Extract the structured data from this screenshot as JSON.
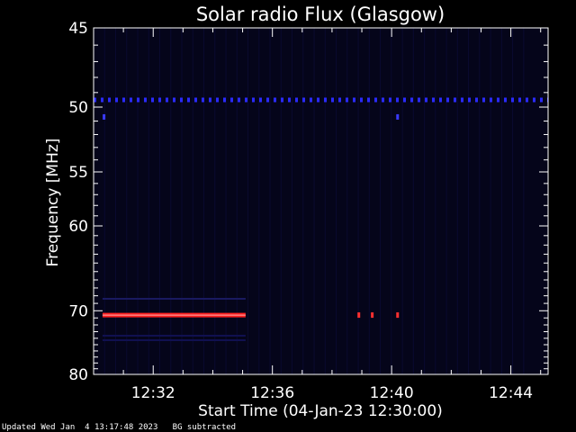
{
  "chart_data": {
    "type": "heatmap",
    "title": "Solar radio Flux (Glasgow)",
    "xlabel": "Start Time (04-Jan-23 12:30:00)",
    "ylabel": "Frequency [MHz]",
    "x_unit": "minutes after 12:30:00",
    "xlim": [
      0,
      15.25
    ],
    "ylim": [
      80,
      45
    ],
    "y_scale": "reciprocal",
    "x_ticks": [
      {
        "value": 2,
        "label": "12:32"
      },
      {
        "value": 6,
        "label": "12:36"
      },
      {
        "value": 10,
        "label": "12:40"
      },
      {
        "value": 14,
        "label": "12:44"
      }
    ],
    "y_ticks": [
      45,
      50,
      55,
      60,
      70,
      80
    ],
    "background_color": "#05051a",
    "features": [
      {
        "name": "interference-band-49.5MHz",
        "freq": 49.5,
        "t_start": 0,
        "t_end": 15.25,
        "color": "#2a2aff",
        "style": "dashed"
      },
      {
        "name": "interference-band-70.5MHz",
        "freq": 70.6,
        "t_start": 0.3,
        "t_end": 5.1,
        "color": "#ff2020",
        "style": "solid"
      },
      {
        "name": "faint-band-68.5MHz",
        "freq": 68.4,
        "t_start": 0.3,
        "t_end": 5.1,
        "color": "#1a1a60",
        "style": "solid"
      },
      {
        "name": "faint-band-73.5MHz",
        "freq": 73.6,
        "t_start": 0.3,
        "t_end": 5.1,
        "color": "#101050",
        "style": "solid"
      },
      {
        "name": "faint-band-74.2MHz",
        "freq": 74.3,
        "t_start": 0.3,
        "t_end": 5.1,
        "color": "#101050",
        "style": "solid"
      }
    ],
    "spots": [
      {
        "freq": 70.6,
        "t": 8.9,
        "color": "#ff3030"
      },
      {
        "freq": 70.6,
        "t": 9.35,
        "color": "#ff3030"
      },
      {
        "freq": 70.6,
        "t": 10.2,
        "color": "#ff3030"
      },
      {
        "freq": 50.7,
        "t": 0.35,
        "color": "#3a3aff"
      },
      {
        "freq": 50.7,
        "t": 10.2,
        "color": "#3a3aff"
      }
    ]
  },
  "footer": {
    "updated": "Updated Wed Jan  4 13:17:48 2023",
    "note": "BG subtracted"
  }
}
